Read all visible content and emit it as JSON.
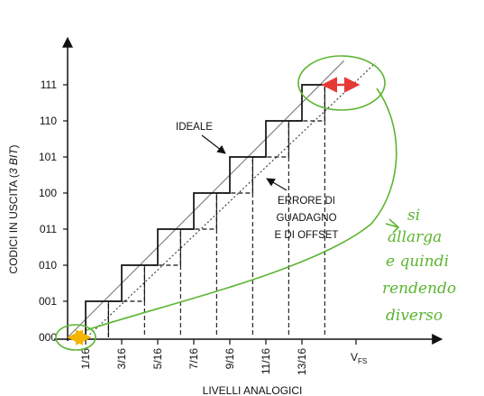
{
  "chart_data": {
    "type": "step",
    "title": "",
    "xlabel": "LIVELLI ANALOGICI",
    "ylabel_main": "CODICI IN USCITA (",
    "ylabel_italic": "3 BIT",
    "ylabel_close": ")",
    "x_tick_labels": [
      "1/16",
      "3/16",
      "5/16",
      "7/16",
      "9/16",
      "11/16",
      "13/16"
    ],
    "x_end_label_main": "V",
    "x_end_label_sub": "FS",
    "y_tick_labels": [
      "000",
      "001",
      "010",
      "011",
      "100",
      "101",
      "110",
      "111"
    ],
    "annotations": {
      "ideal": "IDEALE",
      "error_lines": [
        "ERRORE DI",
        "GUADAGNO",
        "E DI OFFSET"
      ]
    },
    "series": [
      {
        "style": "solid",
        "transitions": [
          0.0625,
          0.1875,
          0.3125,
          0.4375,
          0.5625,
          0.6875,
          0.8125
        ],
        "end_x": 1.0
      },
      {
        "style": "dashed",
        "transitions": [
          0.1417,
          0.2667,
          0.3917,
          0.5167,
          0.6417,
          0.7667,
          0.8917
        ],
        "end_x": 0.8917
      }
    ],
    "reference_lines": [
      {
        "style": "solid",
        "x0": 0.0,
        "y0": 0.0,
        "x1": 0.9583,
        "y1": 7.667
      },
      {
        "style": "dotted",
        "x0": 0.0667,
        "y0": 0.0,
        "x1": 1.0667,
        "y1": 7.6
      }
    ],
    "colors": {
      "ink": "#111111",
      "highlight": "#5cb531",
      "red_arrow": "#e53935",
      "yellow_arrow": "#f4b400"
    }
  },
  "handwritten_note": [
    "si",
    "allarga",
    "e quindi",
    "rendendo",
    "diverso"
  ]
}
